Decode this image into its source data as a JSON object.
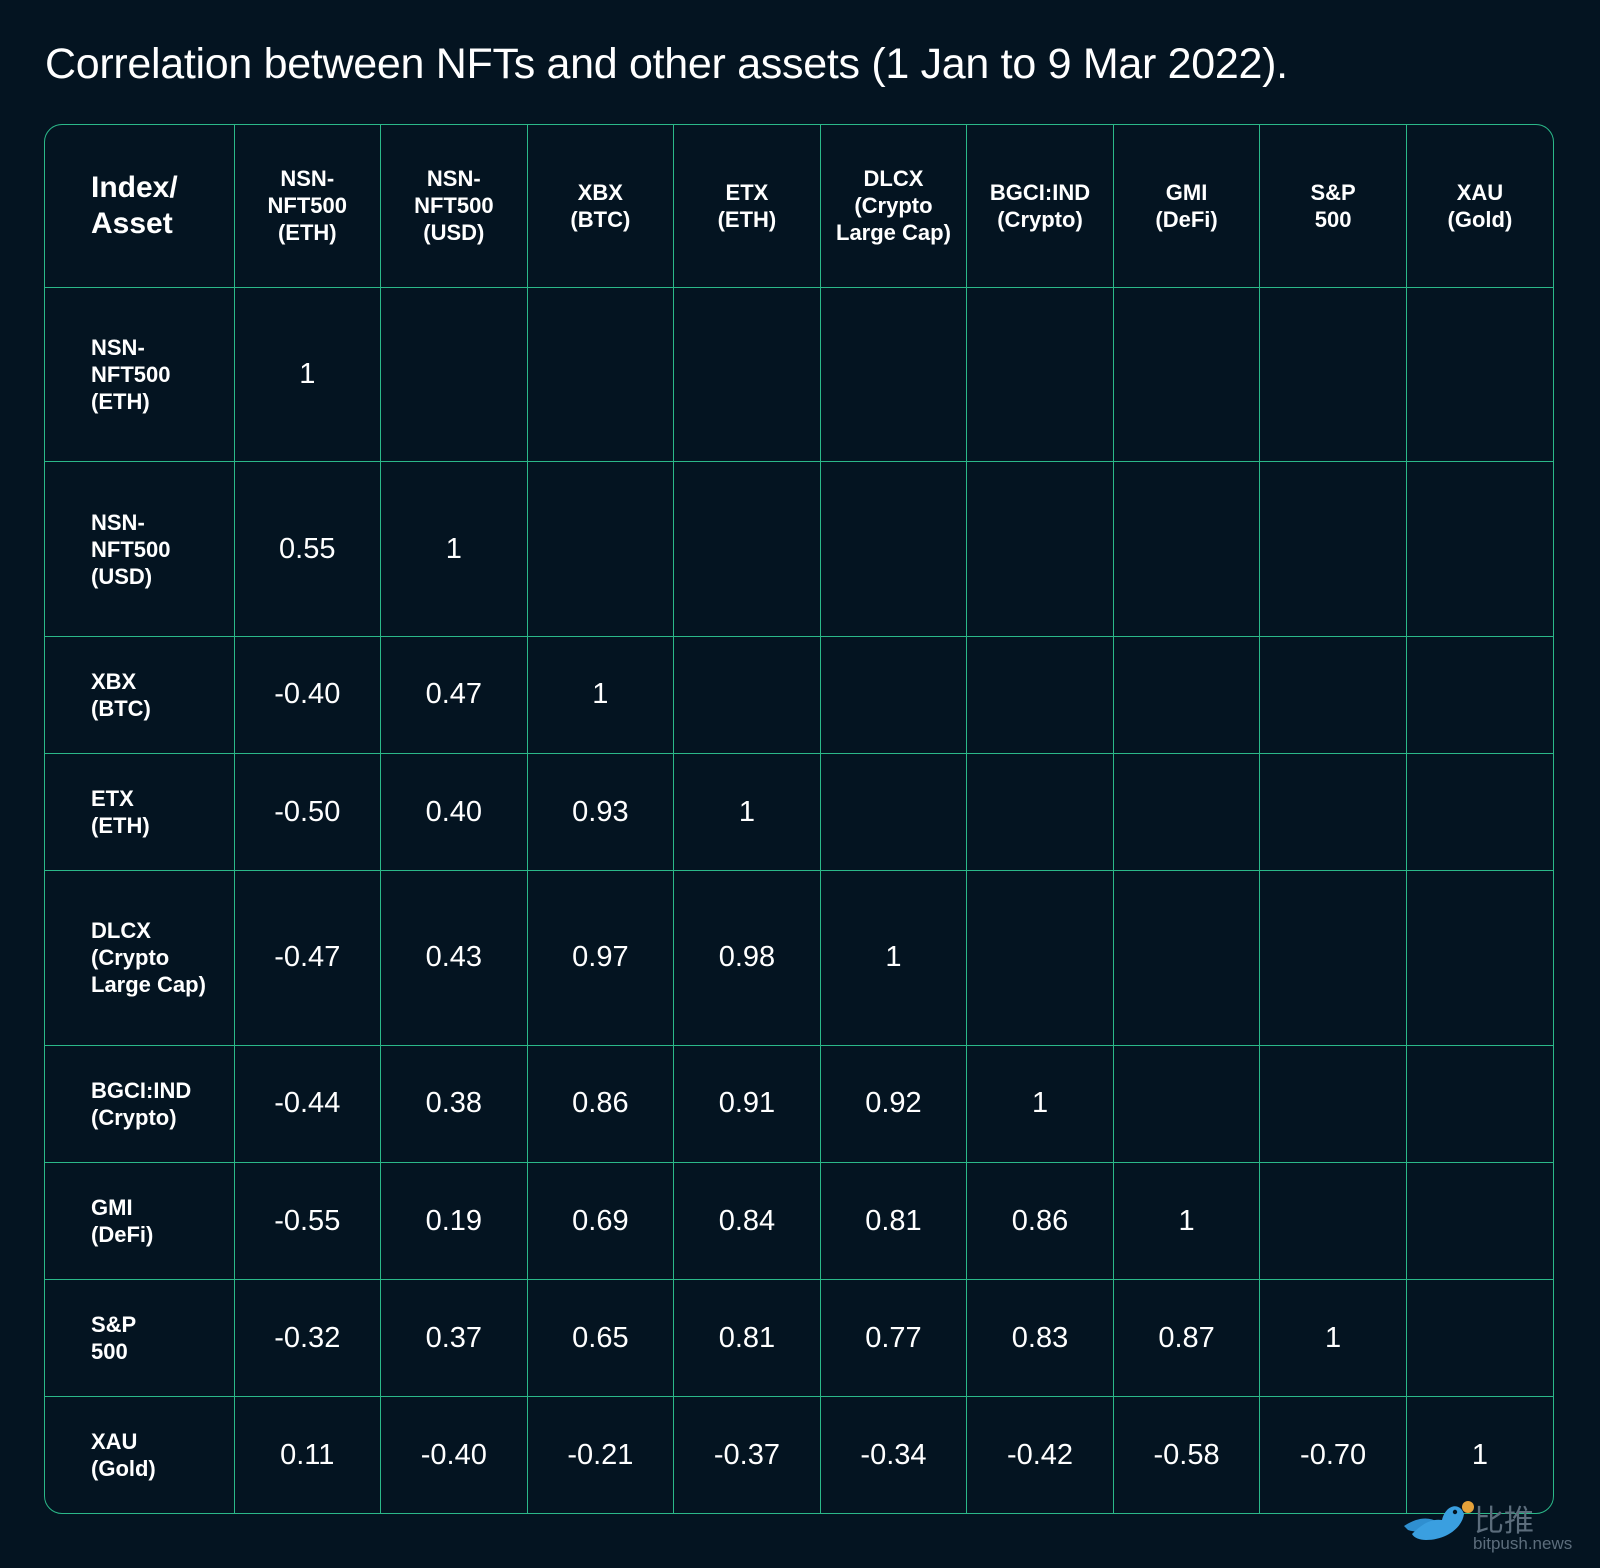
{
  "title": "Correlation between NFTs and other assets (1 Jan to 9 Mar 2022).",
  "colors": {
    "background": "#041421",
    "grid": "#2bb889",
    "text": "#ffffff"
  },
  "chart_data": {
    "type": "table",
    "title": "Correlation between NFTs and other assets (1 Jan to 9 Mar 2022).",
    "corner_label": "Index/\nAsset",
    "columns": [
      "NSN-\nNFT500\n(ETH)",
      "NSN-\nNFT500\n(USD)",
      "XBX\n(BTC)",
      "ETX\n(ETH)",
      "DLCX\n(Crypto\nLarge Cap)",
      "BGCI:IND\n(Crypto)",
      "GMI\n(DeFi)",
      "S&P\n500",
      "XAU\n(Gold)"
    ],
    "rows": [
      {
        "label": "NSN-\nNFT500\n(ETH)",
        "values": [
          "1",
          "",
          "",
          "",
          "",
          "",
          "",
          "",
          ""
        ]
      },
      {
        "label": "NSN-\nNFT500\n(USD)",
        "values": [
          "0.55",
          "1",
          "",
          "",
          "",
          "",
          "",
          "",
          ""
        ]
      },
      {
        "label": "XBX\n(BTC)",
        "values": [
          "-0.40",
          "0.47",
          "1",
          "",
          "",
          "",
          "",
          "",
          ""
        ]
      },
      {
        "label": "ETX\n(ETH)",
        "values": [
          "-0.50",
          "0.40",
          "0.93",
          "1",
          "",
          "",
          "",
          "",
          ""
        ]
      },
      {
        "label": "DLCX\n(Crypto\nLarge Cap)",
        "values": [
          "-0.47",
          "0.43",
          "0.97",
          "0.98",
          "1",
          "",
          "",
          "",
          ""
        ]
      },
      {
        "label": "BGCI:IND\n(Crypto)",
        "values": [
          "-0.44",
          "0.38",
          "0.86",
          "0.91",
          "0.92",
          "1",
          "",
          "",
          ""
        ]
      },
      {
        "label": "GMI\n(DeFi)",
        "values": [
          "-0.55",
          "0.19",
          "0.69",
          "0.84",
          "0.81",
          "0.86",
          "1",
          "",
          ""
        ]
      },
      {
        "label": "S&P\n500",
        "values": [
          "-0.32",
          "0.37",
          "0.65",
          "0.81",
          "0.77",
          "0.83",
          "0.87",
          "1",
          ""
        ]
      },
      {
        "label": "XAU\n(Gold)",
        "values": [
          "0.11",
          "-0.40",
          "-0.21",
          "-0.37",
          "-0.34",
          "-0.42",
          "-0.58",
          "-0.70",
          "1"
        ]
      }
    ]
  },
  "watermark": {
    "text": "比推",
    "url": "bitpush.news",
    "icon": "bird-logo-icon"
  }
}
